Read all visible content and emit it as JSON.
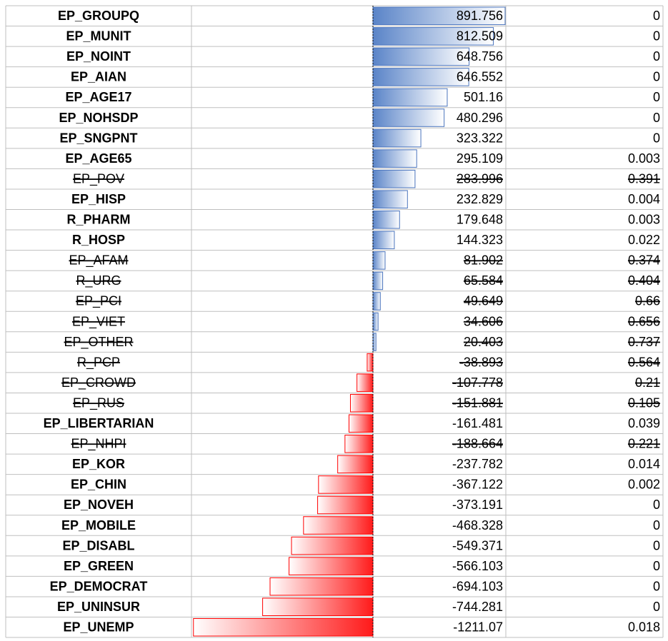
{
  "table": {
    "rows": [
      {
        "name": "EP_GROUPQ",
        "value": 891.756,
        "p": 0,
        "struck": false
      },
      {
        "name": "EP_MUNIT",
        "value": 812.509,
        "p": 0,
        "struck": false
      },
      {
        "name": "EP_NOINT",
        "value": 648.756,
        "p": 0,
        "struck": false
      },
      {
        "name": "EP_AIAN",
        "value": 646.552,
        "p": 0,
        "struck": false
      },
      {
        "name": "EP_AGE17",
        "value": 501.16,
        "p": 0,
        "struck": false
      },
      {
        "name": "EP_NOHSDP",
        "value": 480.296,
        "p": 0,
        "struck": false
      },
      {
        "name": "EP_SNGPNT",
        "value": 323.322,
        "p": 0,
        "struck": false
      },
      {
        "name": "EP_AGE65",
        "value": 295.109,
        "p": 0.003,
        "struck": false
      },
      {
        "name": "EP_POV",
        "value": 283.996,
        "p": 0.391,
        "struck": true
      },
      {
        "name": "EP_HISP",
        "value": 232.829,
        "p": 0.004,
        "struck": false
      },
      {
        "name": "R_PHARM",
        "value": 179.648,
        "p": 0.003,
        "struck": false
      },
      {
        "name": "R_HOSP",
        "value": 144.323,
        "p": 0.022,
        "struck": false
      },
      {
        "name": "EP_AFAM",
        "value": 81.902,
        "p": 0.374,
        "struck": true
      },
      {
        "name": "R_URG",
        "value": 65.584,
        "p": 0.404,
        "struck": true
      },
      {
        "name": "EP_PCI",
        "value": 49.649,
        "p": 0.66,
        "struck": true
      },
      {
        "name": "EP_VIET",
        "value": 34.606,
        "p": 0.656,
        "struck": true
      },
      {
        "name": "EP_OTHER",
        "value": 20.403,
        "p": 0.737,
        "struck": true
      },
      {
        "name": "R_PCP",
        "value": -38.893,
        "p": 0.564,
        "struck": true
      },
      {
        "name": "EP_CROWD",
        "value": -107.778,
        "p": 0.21,
        "struck": true
      },
      {
        "name": "EP_RUS",
        "value": -151.881,
        "p": 0.105,
        "struck": true
      },
      {
        "name": "EP_LIBERTARIAN",
        "value": -161.481,
        "p": 0.039,
        "struck": false
      },
      {
        "name": "EP_NHPI",
        "value": -188.664,
        "p": 0.221,
        "struck": true
      },
      {
        "name": "EP_KOR",
        "value": -237.782,
        "p": 0.014,
        "struck": false
      },
      {
        "name": "EP_CHIN",
        "value": -367.122,
        "p": 0.002,
        "struck": false
      },
      {
        "name": "EP_NOVEH",
        "value": -373.191,
        "p": 0,
        "struck": false
      },
      {
        "name": "EP_MOBILE",
        "value": -468.328,
        "p": 0,
        "struck": false
      },
      {
        "name": "EP_DISABL",
        "value": -549.371,
        "p": 0,
        "struck": false
      },
      {
        "name": "EP_GREEN",
        "value": -566.103,
        "p": 0,
        "struck": false
      },
      {
        "name": "EP_DEMOCRAT",
        "value": -694.103,
        "p": 0,
        "struck": false
      },
      {
        "name": "EP_UNINSUR",
        "value": -744.281,
        "p": 0,
        "struck": false
      },
      {
        "name": "EP_UNEMP",
        "value": -1211.07,
        "p": 0.018,
        "struck": false
      }
    ]
  }
}
